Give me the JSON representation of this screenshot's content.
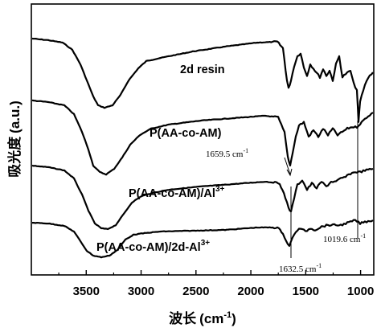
{
  "chart_data": {
    "type": "line",
    "xlabel_cn": "波长",
    "xlabel_unit": "(cm",
    "xlabel_sup": "-1",
    "xlabel_close": ")",
    "ylabel_cn": "吸光度",
    "ylabel_unit": "(a.u.)",
    "x_reversed": true,
    "xlim": [
      4000,
      880
    ],
    "x_ticks": [
      3500,
      3000,
      2500,
      2000,
      1500,
      1000
    ],
    "series": [
      {
        "name": "2d resin"
      },
      {
        "name": "P(AA-co-AM)"
      },
      {
        "name": "P(AA-co-AM)/Al",
        "sup": "3+"
      },
      {
        "name": "P(AA-co-AM)/2d-Al",
        "sup": "3+"
      }
    ],
    "annotations": [
      {
        "text": "1659.5 cm",
        "sup": "-1",
        "x": 1659.5
      },
      {
        "text": "1632.5 cm",
        "sup": "-1",
        "x": 1632.5
      },
      {
        "text": "1019.6 cm",
        "sup": "-1",
        "x": 1019.6
      }
    ]
  }
}
